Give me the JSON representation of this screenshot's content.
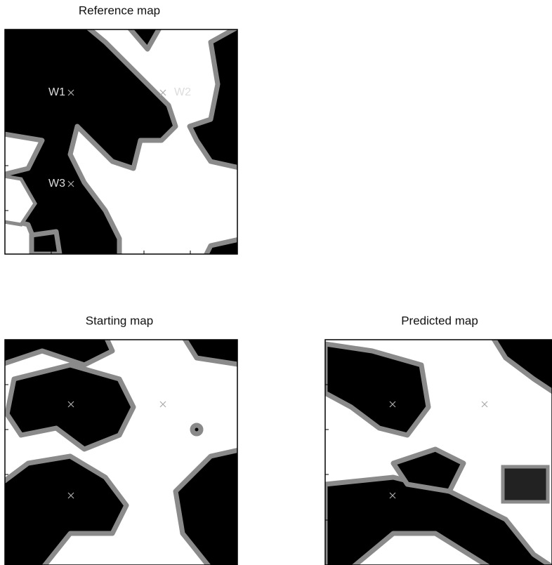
{
  "panels": [
    {
      "title": "Reference map",
      "wells": [
        "W1",
        "W2",
        "W3"
      ]
    },
    {
      "title": "Starting map"
    },
    {
      "title": "Predicted map"
    }
  ]
}
